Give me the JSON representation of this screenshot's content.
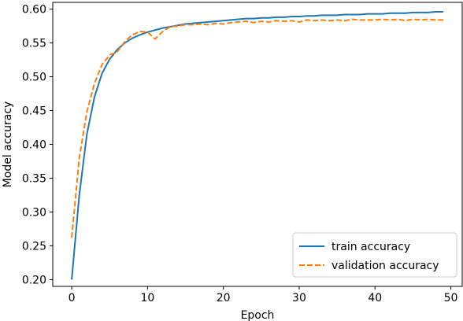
{
  "chart_data": {
    "type": "line",
    "xlabel": "Epoch",
    "ylabel": "Model accuracy",
    "xlim": [
      -2.5,
      51.5
    ],
    "ylim": [
      0.19,
      0.61
    ],
    "xticks": [
      0,
      10,
      20,
      30,
      40,
      50
    ],
    "yticks": [
      0.2,
      0.25,
      0.3,
      0.35,
      0.4,
      0.45,
      0.5,
      0.55,
      0.6
    ],
    "grid": false,
    "legend_position": "bottom-right",
    "series": [
      {
        "name": "train accuracy",
        "color": "#1f77b4",
        "dash": "solid",
        "x": [
          0,
          1,
          2,
          3,
          4,
          5,
          6,
          7,
          8,
          9,
          10,
          11,
          12,
          13,
          14,
          15,
          16,
          17,
          18,
          19,
          20,
          21,
          22,
          23,
          24,
          25,
          26,
          27,
          28,
          29,
          30,
          31,
          32,
          33,
          34,
          35,
          36,
          37,
          38,
          39,
          40,
          41,
          42,
          43,
          44,
          45,
          46,
          47,
          48,
          49
        ],
        "values": [
          0.2,
          0.325,
          0.415,
          0.47,
          0.505,
          0.526,
          0.54,
          0.55,
          0.557,
          0.562,
          0.566,
          0.569,
          0.572,
          0.574,
          0.576,
          0.578,
          0.579,
          0.58,
          0.581,
          0.582,
          0.583,
          0.584,
          0.585,
          0.586,
          0.586,
          0.587,
          0.587,
          0.588,
          0.588,
          0.589,
          0.589,
          0.59,
          0.59,
          0.591,
          0.591,
          0.591,
          0.592,
          0.592,
          0.592,
          0.593,
          0.593,
          0.593,
          0.594,
          0.594,
          0.594,
          0.595,
          0.595,
          0.595,
          0.596,
          0.596
        ]
      },
      {
        "name": "validation accuracy",
        "color": "#ff7f0e",
        "dash": "dashed",
        "x": [
          0,
          1,
          2,
          3,
          4,
          5,
          6,
          7,
          8,
          9,
          10,
          11,
          12,
          13,
          14,
          15,
          16,
          17,
          18,
          19,
          20,
          21,
          22,
          23,
          24,
          25,
          26,
          27,
          28,
          29,
          30,
          31,
          32,
          33,
          34,
          35,
          36,
          37,
          38,
          39,
          40,
          41,
          42,
          43,
          44,
          45,
          46,
          47,
          48,
          49
        ],
        "values": [
          0.262,
          0.38,
          0.448,
          0.49,
          0.518,
          0.532,
          0.537,
          0.552,
          0.562,
          0.567,
          0.566,
          0.556,
          0.567,
          0.574,
          0.575,
          0.577,
          0.577,
          0.578,
          0.577,
          0.579,
          0.578,
          0.58,
          0.581,
          0.582,
          0.58,
          0.582,
          0.581,
          0.583,
          0.582,
          0.583,
          0.581,
          0.584,
          0.583,
          0.584,
          0.583,
          0.584,
          0.583,
          0.585,
          0.584,
          0.584,
          0.584,
          0.585,
          0.584,
          0.585,
          0.583,
          0.585,
          0.584,
          0.585,
          0.584,
          0.584
        ]
      }
    ]
  }
}
